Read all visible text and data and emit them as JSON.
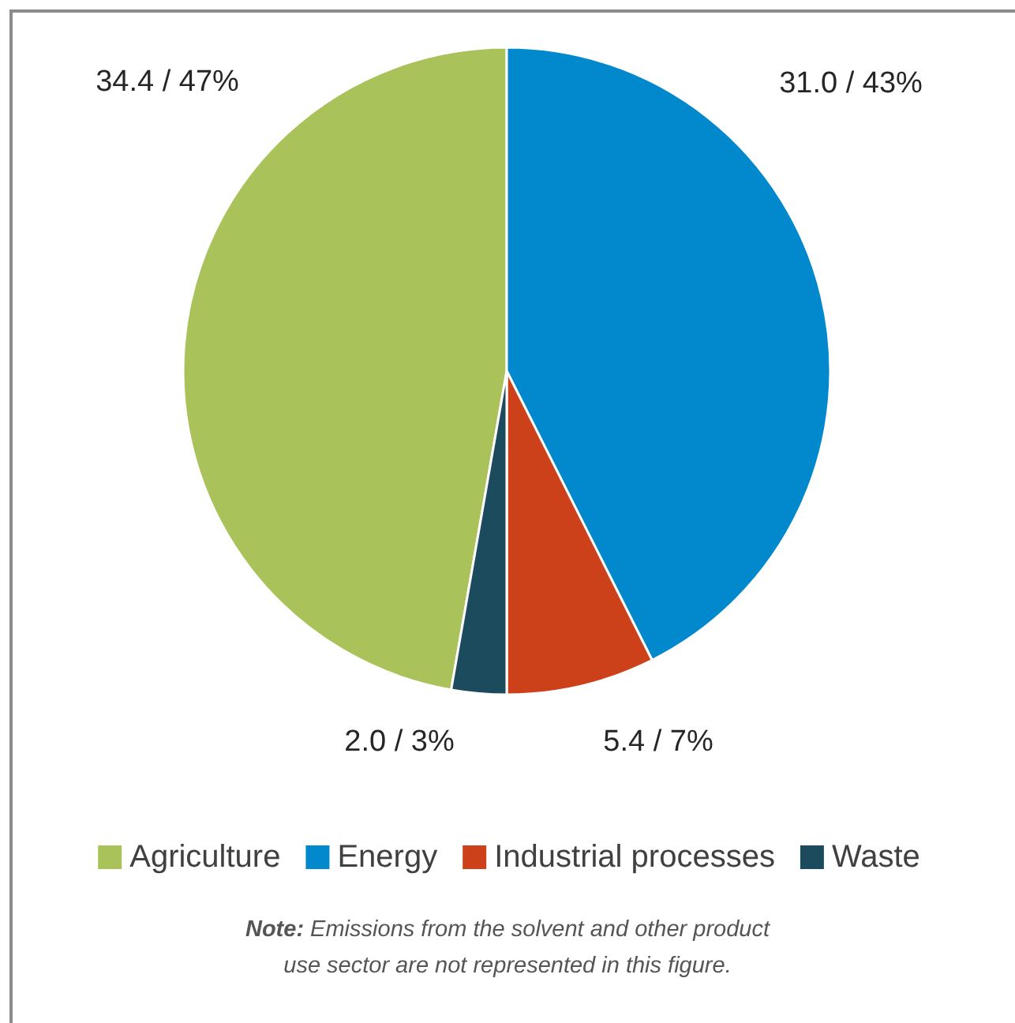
{
  "chart_data": {
    "type": "pie",
    "categories": [
      "Agriculture",
      "Energy",
      "Industrial processes",
      "Waste"
    ],
    "values": [
      34.4,
      31.0,
      5.4,
      2.0
    ],
    "colors": [
      "#a9c25a",
      "#0288cc",
      "#cc4119",
      "#1b4b5c"
    ],
    "value_labels": [
      "34.4 / 47%",
      "31.0 / 43%",
      "5.4 / 7%",
      "2.0 / 3%"
    ],
    "legend": "bottom",
    "annotations": [
      "Note: Emissions from the solvent and other product use sector are not represented in this figure."
    ]
  }
}
